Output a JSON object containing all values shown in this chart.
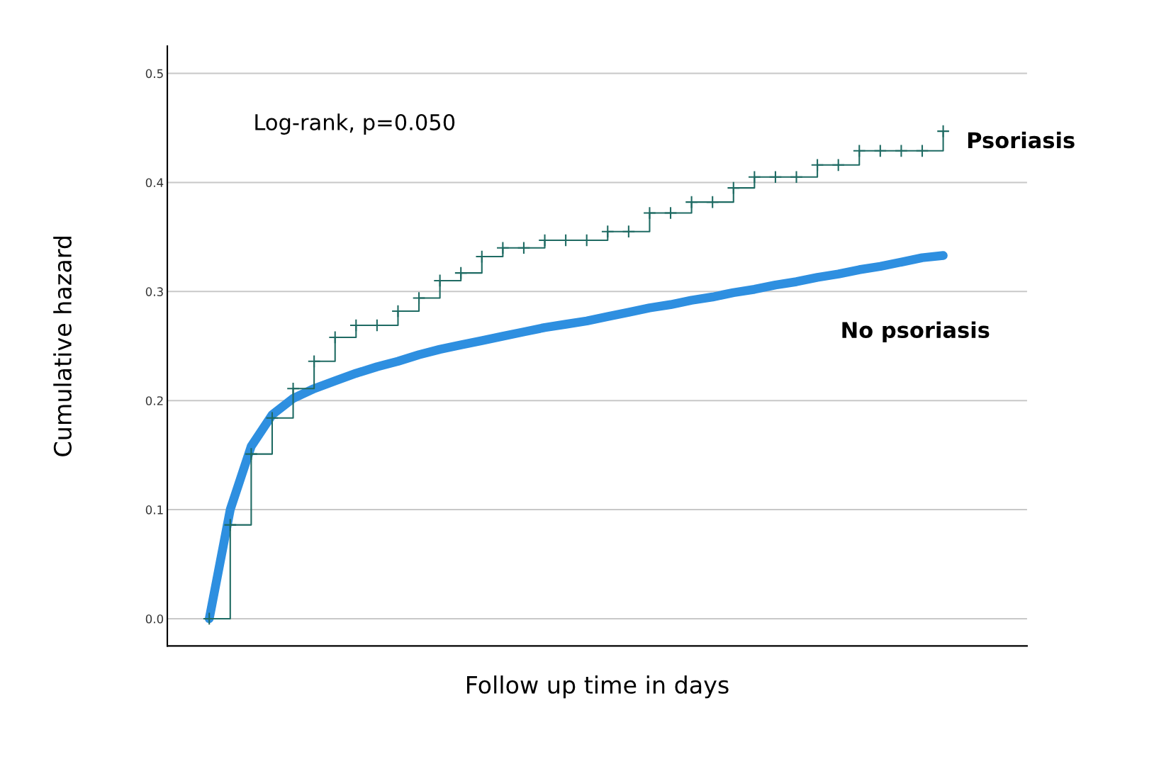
{
  "chart_data": {
    "type": "line",
    "xlabel": "Follow up time in days",
    "ylabel": "Cumulative hazard",
    "categories": [
      null,
      null,
      null,
      null,
      null,
      null,
      null,
      null,
      null,
      null,
      null,
      null,
      null,
      null,
      null,
      null,
      null,
      null,
      null,
      null,
      null,
      null,
      null,
      null,
      null,
      null,
      null,
      null,
      null,
      null,
      null,
      null,
      null,
      null,
      null,
      null
    ],
    "series": [
      {
        "name": "Psoriasis",
        "type": "step",
        "color": "#1f6b63",
        "marker": "cross",
        "line_style": "solid",
        "values": [
          0.0,
          0.086,
          0.151,
          0.184,
          0.211,
          0.236,
          0.258,
          0.269,
          0.269,
          0.282,
          0.294,
          0.31,
          0.317,
          0.332,
          0.34,
          0.34,
          0.347,
          0.347,
          0.347,
          0.355,
          0.355,
          0.372,
          0.372,
          0.382,
          0.382,
          0.395,
          0.405,
          0.405,
          0.405,
          0.416,
          0.416,
          0.429,
          0.429,
          0.429,
          0.429,
          0.447
        ]
      },
      {
        "name": "No psoriasis",
        "color": "#2e8fe0",
        "line_style": "solid",
        "values": [
          0.0,
          0.1,
          0.158,
          0.187,
          0.202,
          0.211,
          0.218,
          0.225,
          0.231,
          0.236,
          0.242,
          0.247,
          0.251,
          0.255,
          0.259,
          0.263,
          0.267,
          0.27,
          0.273,
          0.277,
          0.281,
          0.285,
          0.288,
          0.292,
          0.295,
          0.299,
          0.302,
          0.306,
          0.309,
          0.313,
          0.316,
          0.32,
          0.323,
          0.327,
          0.331,
          0.333
        ]
      }
    ],
    "ylim": [
      -0.025,
      0.525
    ],
    "yticks": [
      {
        "value": 0.0,
        "label": "0.0"
      },
      0.1,
      0.2,
      0.3,
      0.4,
      0.5
    ],
    "grid": "y",
    "legend": false,
    "tick_labels": "y",
    "annotations": [
      {
        "text": "Log-rank, p=0.050"
      }
    ]
  }
}
